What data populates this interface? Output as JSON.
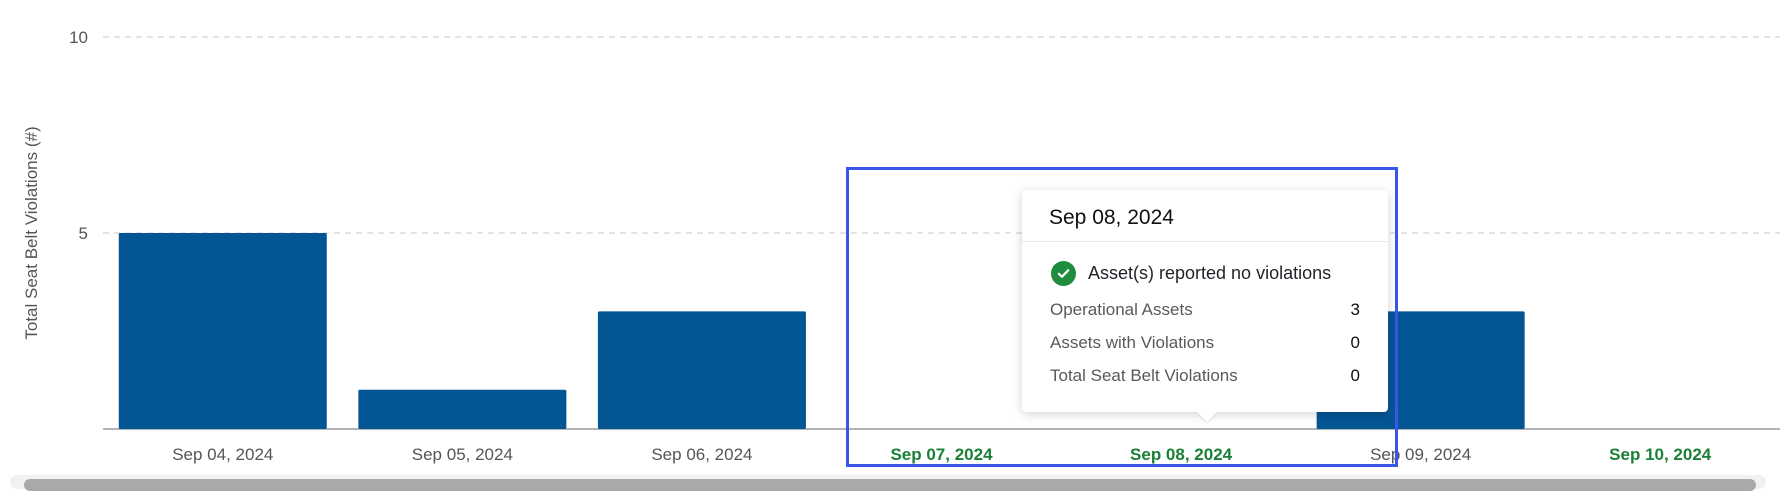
{
  "chart_data": {
    "type": "bar",
    "ylabel": "Total Seat Belt Violations (#)",
    "ylim": [
      0,
      10
    ],
    "y_ticks": [
      "5",
      "10"
    ],
    "categories": [
      "Sep 04, 2024",
      "Sep 05, 2024",
      "Sep 06, 2024",
      "Sep 07, 2024",
      "Sep 08, 2024",
      "Sep 09, 2024",
      "Sep 10, 2024"
    ],
    "values": [
      5,
      1,
      3,
      0,
      0,
      3,
      0
    ],
    "no_violation_days": [
      "Sep 07, 2024",
      "Sep 08, 2024",
      "Sep 10, 2024"
    ],
    "grid": true,
    "colors": {
      "bar": "#035594",
      "no_violation_label": "#1a7f37",
      "grid": "#c8c8c8",
      "axis": "#9a9a9a",
      "highlight": "#3b55e6"
    }
  },
  "tooltip": {
    "title": "Sep 08, 2024",
    "status": "Asset(s) reported no violations",
    "status_icon": "check-circle-icon",
    "rows": [
      {
        "label": "Operational Assets",
        "value": "3"
      },
      {
        "label": "Assets with Violations",
        "value": "0"
      },
      {
        "label": "Total Seat Belt Violations",
        "value": "0"
      }
    ]
  }
}
